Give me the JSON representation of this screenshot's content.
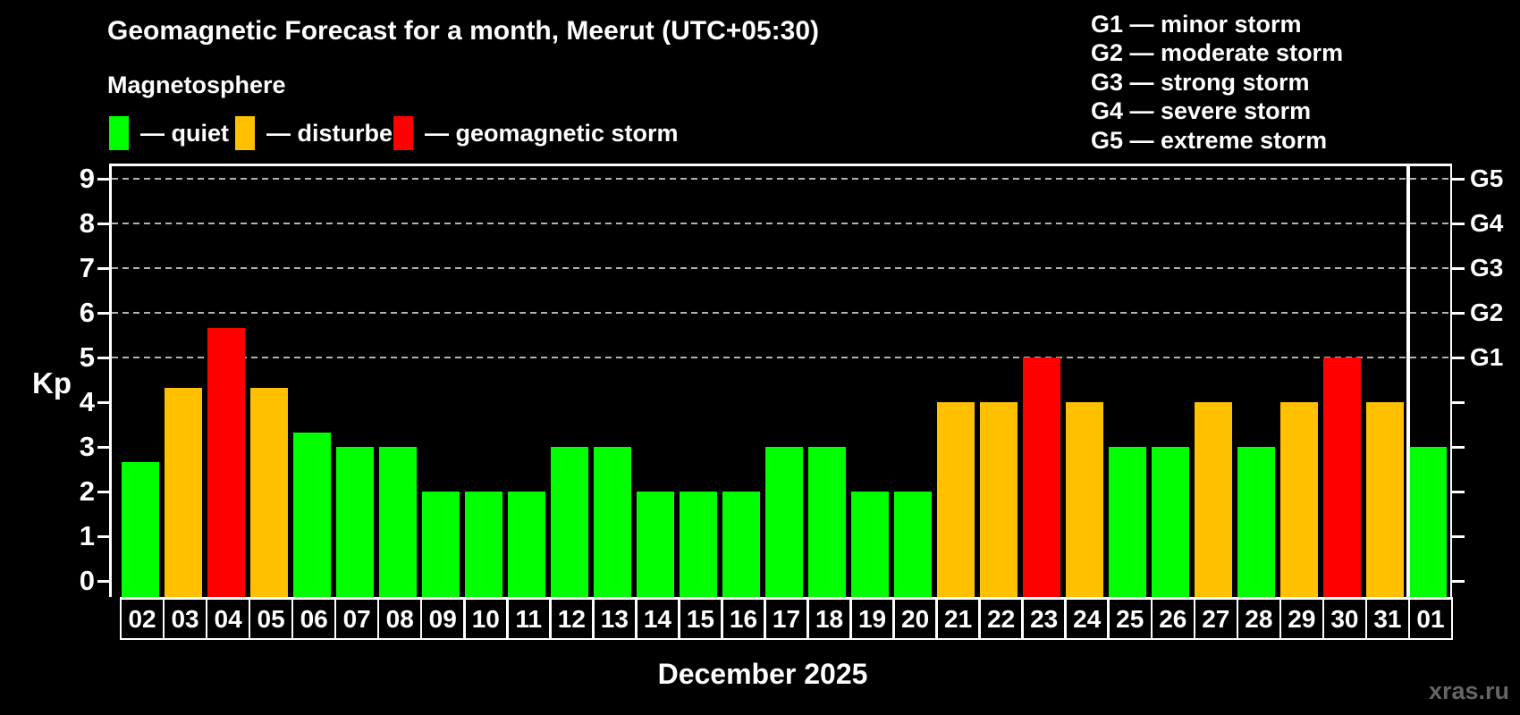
{
  "page": {
    "title": "Geomagnetic Forecast for a month, Meerut (UTC+05:30)",
    "subtitle": "Magnetosphere",
    "watermark": "xras.ru"
  },
  "status_legend": {
    "items": [
      {
        "key": "quiet",
        "label": "— quiet",
        "color": "#00ff00"
      },
      {
        "key": "disturbed",
        "label": "— disturbed",
        "color": "#ffc000"
      },
      {
        "key": "storm",
        "label": "— geomagnetic storm",
        "color": "#ff0000"
      }
    ]
  },
  "g_scale_legend": {
    "items": [
      {
        "text": "G1 — minor storm"
      },
      {
        "text": "G2 — moderate storm"
      },
      {
        "text": "G3 — strong storm"
      },
      {
        "text": "G4 — severe storm"
      },
      {
        "text": "G5 — extreme storm"
      }
    ]
  },
  "chart_data": {
    "type": "bar",
    "title": "Geomagnetic Forecast for a month, Meerut (UTC+05:30)",
    "xlabel": "December 2025",
    "ylabel": "Kp",
    "ylim": [
      0,
      9
    ],
    "yticks": [
      0,
      1,
      2,
      3,
      4,
      5,
      6,
      7,
      8,
      9
    ],
    "grid": {
      "style": "dashed",
      "color": "#b3b3b3",
      "at_kp": [
        5,
        6,
        7,
        8,
        9
      ]
    },
    "right_axis_labels": [
      {
        "text": "G1",
        "kp": 5
      },
      {
        "text": "G2",
        "kp": 6
      },
      {
        "text": "G3",
        "kp": 7
      },
      {
        "text": "G4",
        "kp": 8
      },
      {
        "text": "G5",
        "kp": 9
      }
    ],
    "categories": [
      "02",
      "03",
      "04",
      "05",
      "06",
      "07",
      "08",
      "09",
      "10",
      "11",
      "12",
      "13",
      "14",
      "15",
      "16",
      "17",
      "18",
      "19",
      "20",
      "21",
      "22",
      "23",
      "24",
      "25",
      "26",
      "27",
      "28",
      "29",
      "30",
      "31",
      "01"
    ],
    "values": [
      2.67,
      4.33,
      5.67,
      4.33,
      3.33,
      3,
      3,
      2,
      2,
      2,
      3,
      3,
      2,
      2,
      2,
      3,
      3,
      2,
      2,
      4,
      4,
      5,
      4,
      3,
      3,
      4,
      3,
      4,
      5,
      4,
      3
    ],
    "statuses": [
      "quiet",
      "disturbed",
      "storm",
      "disturbed",
      "quiet",
      "quiet",
      "quiet",
      "quiet",
      "quiet",
      "quiet",
      "quiet",
      "quiet",
      "quiet",
      "quiet",
      "quiet",
      "quiet",
      "quiet",
      "quiet",
      "quiet",
      "disturbed",
      "disturbed",
      "storm",
      "disturbed",
      "quiet",
      "quiet",
      "disturbed",
      "quiet",
      "disturbed",
      "storm",
      "disturbed",
      "quiet"
    ],
    "color_map": {
      "quiet": "#00ff00",
      "disturbed": "#ffc000",
      "storm": "#ff0000"
    },
    "new_month_divider_index": 30,
    "legend_position": "top-left",
    "background": "#000000"
  }
}
